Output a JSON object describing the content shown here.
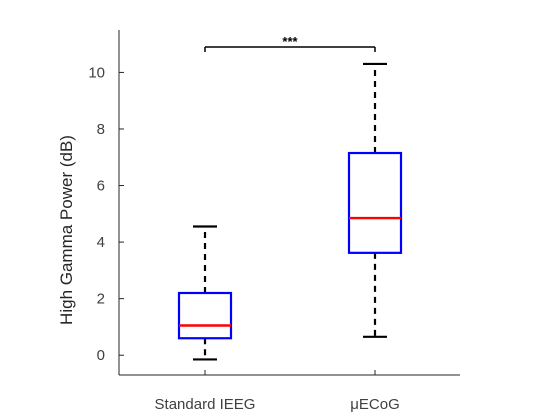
{
  "chart_data": {
    "type": "box",
    "ylabel": "High Gamma Power (dB)",
    "xlabel": "",
    "ylim": [
      -0.7,
      11.5
    ],
    "yticks": [
      0,
      2,
      4,
      6,
      8,
      10
    ],
    "ytick_labels": [
      "0",
      "2",
      "4",
      "6",
      "8",
      "10"
    ],
    "categories": [
      "Standard IEEG",
      "μECoG"
    ],
    "boxes": [
      {
        "category": "Standard IEEG",
        "whisker_low": -0.15,
        "q1": 0.6,
        "median": 1.05,
        "q3": 2.2,
        "whisker_high": 4.55
      },
      {
        "category": "μECoG",
        "whisker_low": 0.65,
        "q1": 3.62,
        "median": 4.85,
        "q3": 7.15,
        "whisker_high": 10.3
      }
    ],
    "significance": {
      "between": [
        "Standard IEEG",
        "μECoG"
      ],
      "y": 10.9,
      "label": "***"
    },
    "grid": false,
    "colors": {
      "box": "#0000ff",
      "median": "#ff0000",
      "whisker": "#000000",
      "axis": "#262626"
    }
  }
}
